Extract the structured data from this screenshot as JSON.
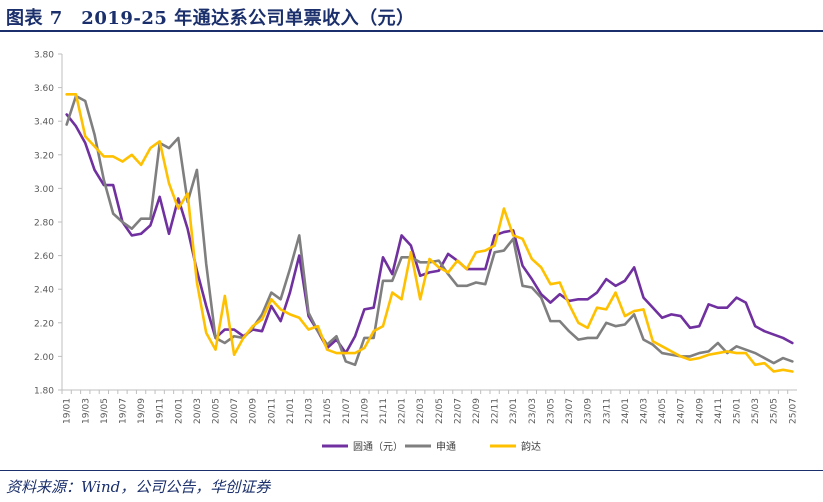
{
  "header": {
    "title": "图表 7　2019-25 年通达系公司单票收入（元）"
  },
  "footer": {
    "source": "资料来源：Wind，公司公告，华创证券"
  },
  "chart_data": {
    "type": "line",
    "title": "",
    "xlabel": "",
    "ylabel": "",
    "ylim": [
      1.8,
      3.8
    ],
    "yticks": [
      "1.80",
      "2.00",
      "2.20",
      "2.40",
      "2.60",
      "2.80",
      "3.00",
      "3.20",
      "3.40",
      "3.60",
      "3.80"
    ],
    "grid": false,
    "legend_position": "bottom",
    "categories": [
      "19/01",
      "19/02",
      "19/03",
      "19/04",
      "19/05",
      "19/06",
      "19/07",
      "19/08",
      "19/09",
      "19/10",
      "19/11",
      "19/12",
      "20/01",
      "20/02",
      "20/03",
      "20/04",
      "20/05",
      "20/06",
      "20/07",
      "20/08",
      "20/09",
      "20/10",
      "20/11",
      "20/12",
      "21/01",
      "21/02",
      "21/03",
      "21/04",
      "21/05",
      "21/06",
      "21/07",
      "21/08",
      "21/09",
      "21/10",
      "21/11",
      "21/12",
      "22/01",
      "22/02",
      "22/03",
      "22/04",
      "22/05",
      "22/06",
      "22/07",
      "22/08",
      "22/09",
      "22/10",
      "22/11",
      "22/12",
      "23/01",
      "23/02",
      "23/03",
      "23/04",
      "23/05",
      "23/06",
      "23/07",
      "23/08",
      "23/09",
      "23/10",
      "23/11",
      "23/12",
      "24/01",
      "24/02",
      "24/03",
      "24/04",
      "24/05",
      "24/06",
      "24/07",
      "24/08",
      "24/09",
      "24/10",
      "24/11",
      "24/12",
      "25/01",
      "25/02",
      "25/03",
      "25/04",
      "25/05",
      "25/06",
      "25/07"
    ],
    "tick_labels": [
      "19/01",
      "19/03",
      "19/05",
      "19/07",
      "19/09",
      "19/11",
      "20/01",
      "20/03",
      "20/05",
      "20/07",
      "20/09",
      "20/11",
      "21/01",
      "21/03",
      "21/05",
      "21/07",
      "21/09",
      "21/11",
      "22/01",
      "22/03",
      "22/05",
      "22/07",
      "22/09",
      "22/11",
      "23/01",
      "23/03",
      "23/05",
      "23/07",
      "23/09",
      "23/11",
      "24/01",
      "24/03",
      "24/05",
      "24/07",
      "24/09",
      "24/11",
      "25/01",
      "25/03",
      "25/05",
      "25/07"
    ],
    "series": [
      {
        "name": "圆通（元）",
        "color": "#7030a0",
        "values": [
          3.44,
          3.37,
          3.27,
          3.11,
          3.02,
          3.02,
          2.8,
          2.72,
          2.73,
          2.78,
          2.95,
          2.73,
          2.94,
          2.76,
          2.51,
          2.3,
          2.11,
          2.16,
          2.16,
          2.12,
          2.16,
          2.15,
          2.3,
          2.21,
          2.38,
          2.6,
          2.24,
          2.15,
          2.05,
          2.1,
          2.02,
          2.12,
          2.28,
          2.29,
          2.59,
          2.49,
          2.72,
          2.66,
          2.48,
          2.5,
          2.51,
          2.61,
          2.57,
          2.52,
          2.52,
          2.52,
          2.72,
          2.74,
          2.75,
          2.54,
          2.46,
          2.37,
          2.32,
          2.37,
          2.33,
          2.34,
          2.34,
          2.38,
          2.46,
          2.42,
          2.45,
          2.53,
          2.35,
          2.29,
          2.23,
          2.25,
          2.24,
          2.17,
          2.18,
          2.31,
          2.29,
          2.29,
          2.35,
          2.32,
          2.18,
          2.15,
          2.13,
          2.11,
          2.08
        ]
      },
      {
        "name": "申通",
        "color": "#7f7f7f",
        "values": [
          3.38,
          3.55,
          3.52,
          3.32,
          3.05,
          2.85,
          2.8,
          2.76,
          2.82,
          2.82,
          3.27,
          3.24,
          3.3,
          2.92,
          3.11,
          2.55,
          2.11,
          2.08,
          2.12,
          2.11,
          2.17,
          2.25,
          2.38,
          2.34,
          2.52,
          2.72,
          2.26,
          2.15,
          2.07,
          2.12,
          1.97,
          1.95,
          2.11,
          2.11,
          2.45,
          2.45,
          2.59,
          2.59,
          2.56,
          2.56,
          2.57,
          2.49,
          2.42,
          2.42,
          2.44,
          2.43,
          2.62,
          2.63,
          2.7,
          2.42,
          2.41,
          2.35,
          2.21,
          2.21,
          2.15,
          2.1,
          2.11,
          2.11,
          2.2,
          2.18,
          2.19,
          2.25,
          2.1,
          2.07,
          2.02,
          2.01,
          2.0,
          2.0,
          2.02,
          2.03,
          2.08,
          2.02,
          2.06,
          2.04,
          2.02,
          1.99,
          1.96,
          1.99,
          1.97
        ]
      },
      {
        "name": "韵达",
        "color": "#ffc000",
        "values": [
          3.56,
          3.56,
          3.31,
          3.25,
          3.19,
          3.19,
          3.16,
          3.2,
          3.14,
          3.24,
          3.28,
          3.03,
          2.88,
          2.97,
          2.44,
          2.14,
          2.04,
          2.36,
          2.01,
          2.11,
          2.18,
          2.22,
          2.34,
          2.28,
          2.25,
          2.23,
          2.16,
          2.18,
          2.04,
          2.02,
          2.02,
          2.02,
          2.05,
          2.15,
          2.18,
          2.38,
          2.34,
          2.62,
          2.34,
          2.58,
          2.53,
          2.5,
          2.57,
          2.52,
          2.62,
          2.63,
          2.66,
          2.88,
          2.72,
          2.7,
          2.58,
          2.53,
          2.43,
          2.44,
          2.31,
          2.2,
          2.17,
          2.29,
          2.28,
          2.38,
          2.24,
          2.27,
          2.28,
          2.09,
          2.06,
          2.03,
          2.0,
          1.98,
          1.99,
          2.01,
          2.02,
          2.03,
          2.02,
          2.02,
          1.95,
          1.96,
          1.91,
          1.92,
          1.91
        ]
      }
    ]
  }
}
